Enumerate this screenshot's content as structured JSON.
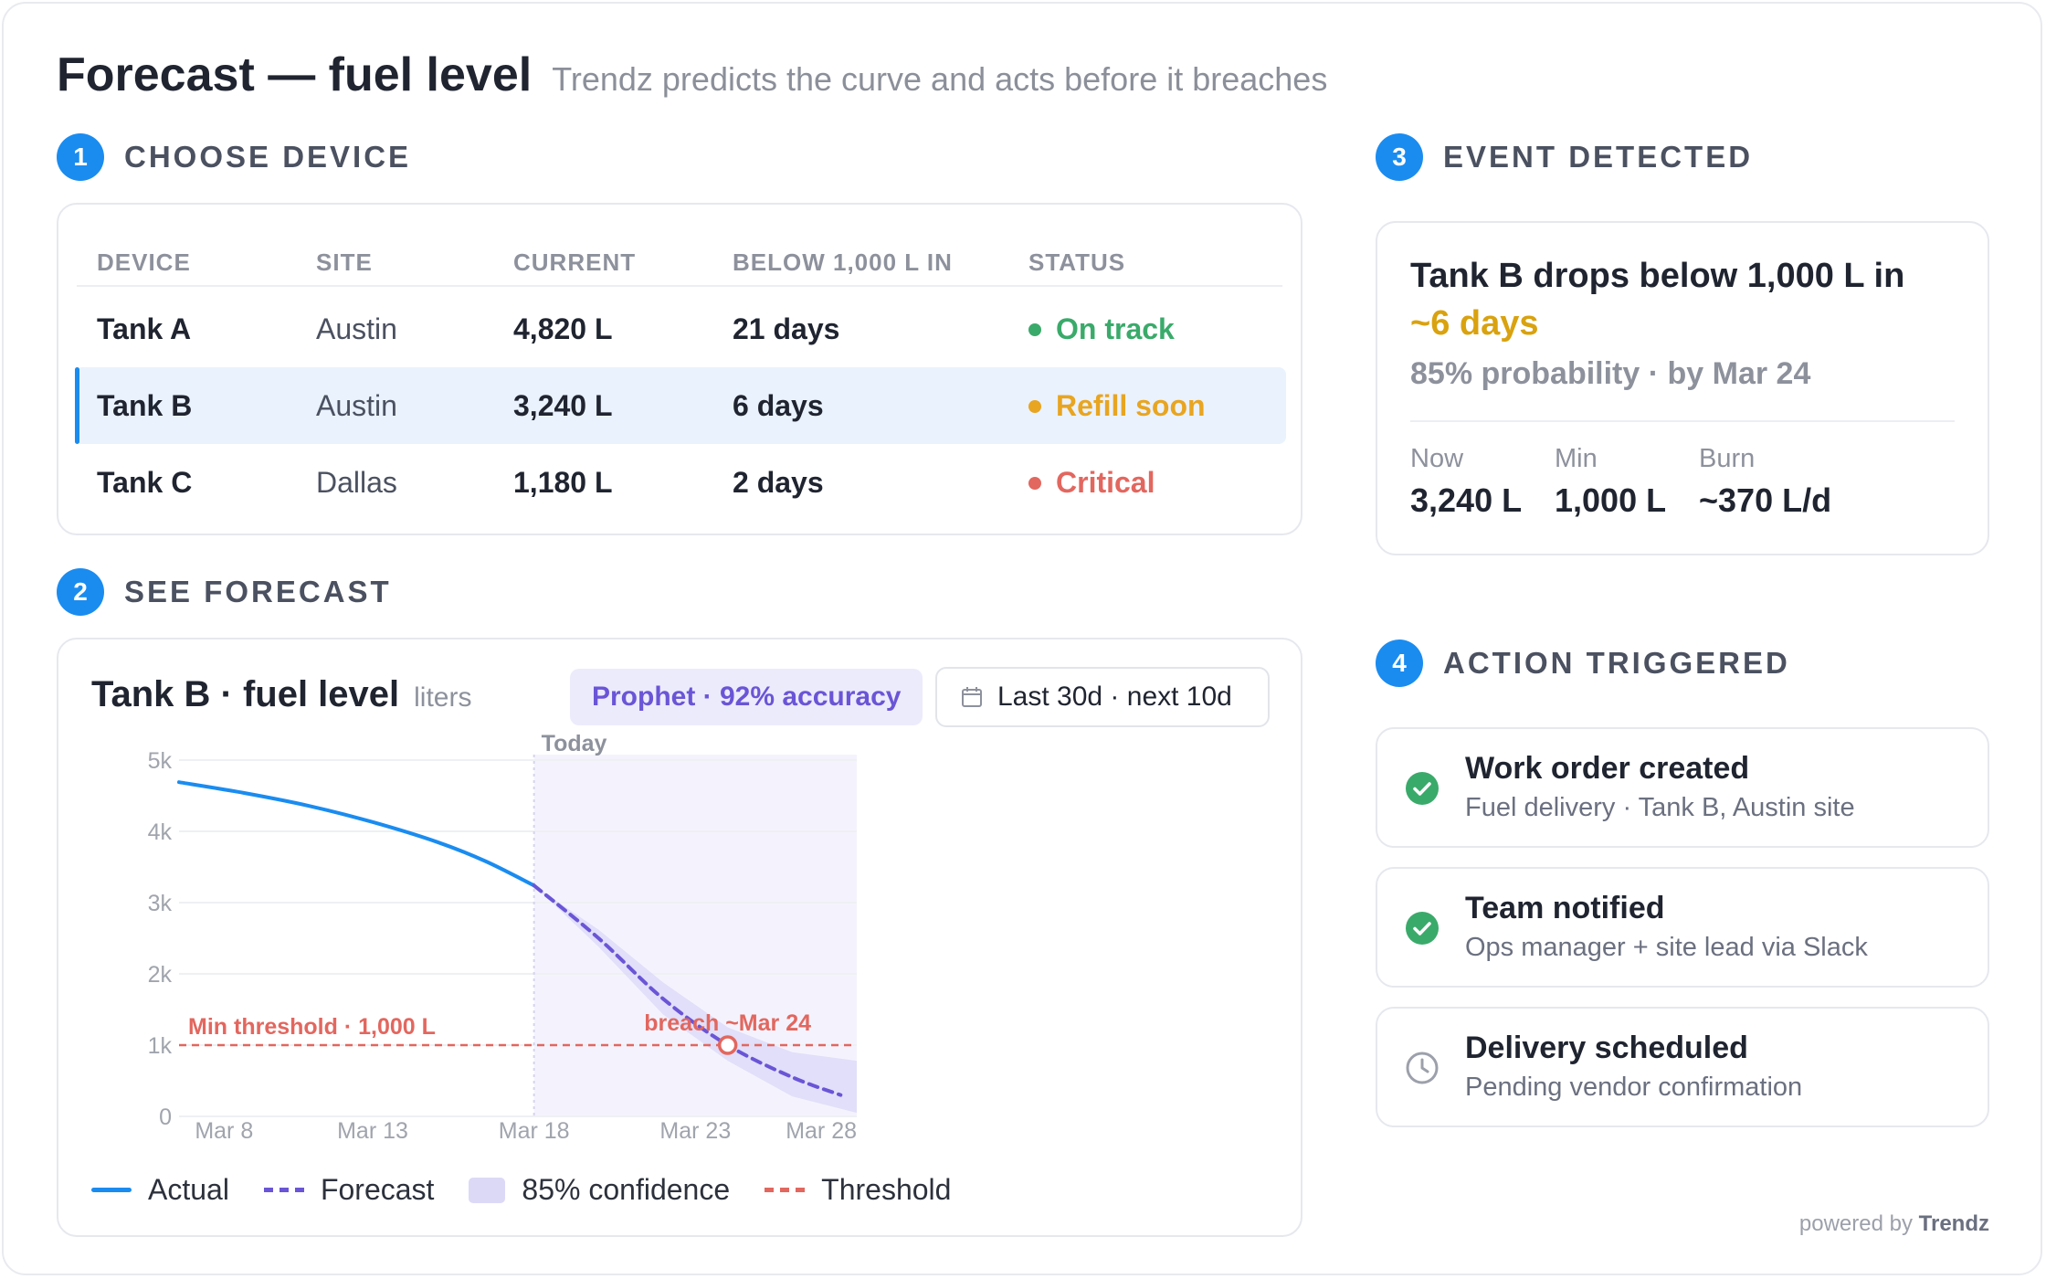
{
  "header": {
    "title": "Forecast — fuel level",
    "subtitle": "Trendz predicts the curve and acts before it breaches"
  },
  "steps": [
    {
      "num": "1",
      "label": "CHOOSE DEVICE"
    },
    {
      "num": "2",
      "label": "SEE FORECAST"
    },
    {
      "num": "3",
      "label": "EVENT DETECTED"
    },
    {
      "num": "4",
      "label": "ACTION TRIGGERED"
    }
  ],
  "device_table": {
    "columns": [
      "DEVICE",
      "SITE",
      "CURRENT",
      "BELOW 1,000 L IN",
      "STATUS"
    ],
    "rows": [
      {
        "device": "Tank A",
        "site": "Austin",
        "current": "4,820 L",
        "below": "21 days",
        "status": "On track",
        "status_color": "#3aaa6a",
        "selected": false
      },
      {
        "device": "Tank B",
        "site": "Austin",
        "current": "3,240 L",
        "below": "6 days",
        "status": "Refill soon",
        "status_color": "#e8a521",
        "selected": true
      },
      {
        "device": "Tank C",
        "site": "Dallas",
        "current": "1,180 L",
        "below": "2 days",
        "status": "Critical",
        "status_color": "#e2675f",
        "selected": false
      }
    ]
  },
  "forecast": {
    "title": "Tank B · fuel level",
    "unit": "liters",
    "model_badge": "Prophet · 92% accuracy",
    "range_label": "Last 30d · next 10d",
    "range_icon": "calendar-icon",
    "legend": {
      "actual": "Actual",
      "forecast": "Forecast",
      "confidence": "85% confidence",
      "threshold": "Threshold"
    }
  },
  "chart_data": {
    "type": "line",
    "title": "Tank B · fuel level",
    "ylabel": "liters",
    "ylim": [
      0,
      5000
    ],
    "yticks": [
      0,
      1000,
      2000,
      3000,
      4000,
      5000
    ],
    "ytick_labels": [
      "0",
      "1k",
      "2k",
      "3k",
      "4k",
      "5k"
    ],
    "xlim": [
      "Mar 7",
      "Mar 28"
    ],
    "xticks": [
      "Mar 8",
      "Mar 13",
      "Mar 18",
      "Mar 23",
      "Mar 28"
    ],
    "today": "Mar 18",
    "today_label": "Today",
    "threshold": 1000,
    "threshold_label": "Min threshold · 1,000 L",
    "breach_label": "breach ~Mar 24",
    "breach_point": {
      "x": "Mar 24",
      "y": 1000
    },
    "series": [
      {
        "name": "Actual",
        "color": "#1a8cf0",
        "x": [
          "Mar 7",
          "Mar 9",
          "Mar 11",
          "Mar 13",
          "Mar 15",
          "Mar 16.5",
          "Mar 18"
        ],
        "y": [
          4690,
          4540,
          4360,
          4130,
          3850,
          3580,
          3240
        ]
      },
      {
        "name": "Forecast",
        "color": "#6a55d6",
        "x": [
          "Mar 18",
          "Mar 20",
          "Mar 22",
          "Mar 24",
          "Mar 26",
          "Mar 27.5"
        ],
        "y": [
          3240,
          2500,
          1650,
          1000,
          550,
          300
        ]
      },
      {
        "name": "85% confidence",
        "color": "#dcd9f7",
        "x": [
          "Mar 18",
          "Mar 20",
          "Mar 22",
          "Mar 24",
          "Mar 26",
          "Mar 28"
        ],
        "lower": [
          3240,
          2380,
          1430,
          780,
          280,
          50
        ],
        "upper": [
          3240,
          2620,
          1880,
          1250,
          900,
          780
        ]
      }
    ],
    "grid": true,
    "legend_position": "bottom"
  },
  "event": {
    "headline": "Tank B drops below 1,000 L in",
    "highlight": "~6 days",
    "probability": "85% probability · by Mar 24",
    "stats": [
      {
        "label": "Now",
        "value": "3,240 L"
      },
      {
        "label": "Min",
        "value": "1,000 L"
      },
      {
        "label": "Burn",
        "value": "~370 L/d"
      }
    ]
  },
  "actions": [
    {
      "title": "Work order created",
      "subtitle": "Fuel delivery · Tank B, Austin site",
      "state": "done",
      "icon": "check-circle-icon"
    },
    {
      "title": "Team notified",
      "subtitle": "Ops manager + site lead via Slack",
      "state": "done",
      "icon": "check-circle-icon"
    },
    {
      "title": "Delivery scheduled",
      "subtitle": "Pending vendor confirmation",
      "state": "pending",
      "icon": "clock-icon"
    }
  ],
  "footer": {
    "powered_prefix": "powered by",
    "brand": "Trendz"
  },
  "colors": {
    "accent": "#1a8cf0",
    "forecast": "#6a55d6",
    "threshold": "#e2675f",
    "success": "#3aaa6a",
    "warning": "#d9a20f"
  }
}
